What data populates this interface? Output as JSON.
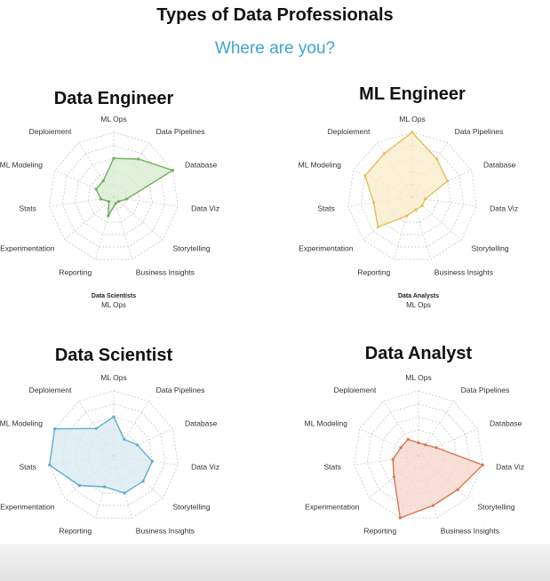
{
  "page": {
    "title": "Types of Data Professionals",
    "subtitle": "Where are you?"
  },
  "notes": [
    {
      "bold": "Data Scientists",
      "text": "ML Ops"
    },
    {
      "bold": "Data Analysts",
      "text": "ML Ops"
    }
  ],
  "chart_data": [
    {
      "type": "radar",
      "title": "Data Engineer",
      "axes": [
        "ML Ops",
        "Data Pipelines",
        "Database",
        "Data Viz",
        "Storytelling",
        "Business Insights",
        "Reporting",
        "Experimentation",
        "Stats",
        "ML Modeling",
        "Deploiement"
      ],
      "rmax": 5,
      "values": [
        3,
        3.5,
        5,
        1,
        0.5,
        0.5,
        1.5,
        0.5,
        1,
        1.5,
        1.5
      ],
      "fill_color": "#d6ebcd",
      "line_color": "#6fb05e",
      "grid": true
    },
    {
      "type": "radar",
      "title": "ML Engineer",
      "axes": [
        "ML Ops",
        "Data Pipelines",
        "Database",
        "Data Viz",
        "Storytelling",
        "Business Insights",
        "Reporting",
        "Experimentation",
        "Stats",
        "ML Modeling",
        "Deploiement"
      ],
      "rmax": 5,
      "values": [
        5,
        3.5,
        3,
        1,
        1,
        1,
        1.5,
        3.5,
        3,
        4,
        4
      ],
      "fill_color": "#f8ecc8",
      "line_color": "#e2c05a",
      "grid": true
    },
    {
      "type": "radar",
      "title": "Data Scientist",
      "axes": [
        "ML Ops",
        "Data Pipelines",
        "Database",
        "Data Viz",
        "Storytelling",
        "Business Insights",
        "Reporting",
        "Experimentation",
        "Stats",
        "ML Modeling",
        "Deploiement"
      ],
      "rmax": 5,
      "values": [
        3,
        1.5,
        2,
        3,
        3,
        3,
        2.5,
        3.5,
        5,
        5,
        2.5
      ],
      "fill_color": "#d7e9f2",
      "line_color": "#5aaed0",
      "grid": true
    },
    {
      "type": "radar",
      "title": "Data Analyst",
      "axes": [
        "ML Ops",
        "Data Pipelines",
        "Database",
        "Data Viz",
        "Storytelling",
        "Business Insights",
        "Reporting",
        "Experimentation",
        "Stats",
        "ML Modeling",
        "Deploiement"
      ],
      "rmax": 5,
      "values": [
        1,
        1,
        1.5,
        5,
        4,
        4,
        5,
        2.5,
        2,
        1.5,
        1.5
      ],
      "fill_color": "#f6d6cc",
      "line_color": "#d9764f",
      "grid": true
    }
  ]
}
